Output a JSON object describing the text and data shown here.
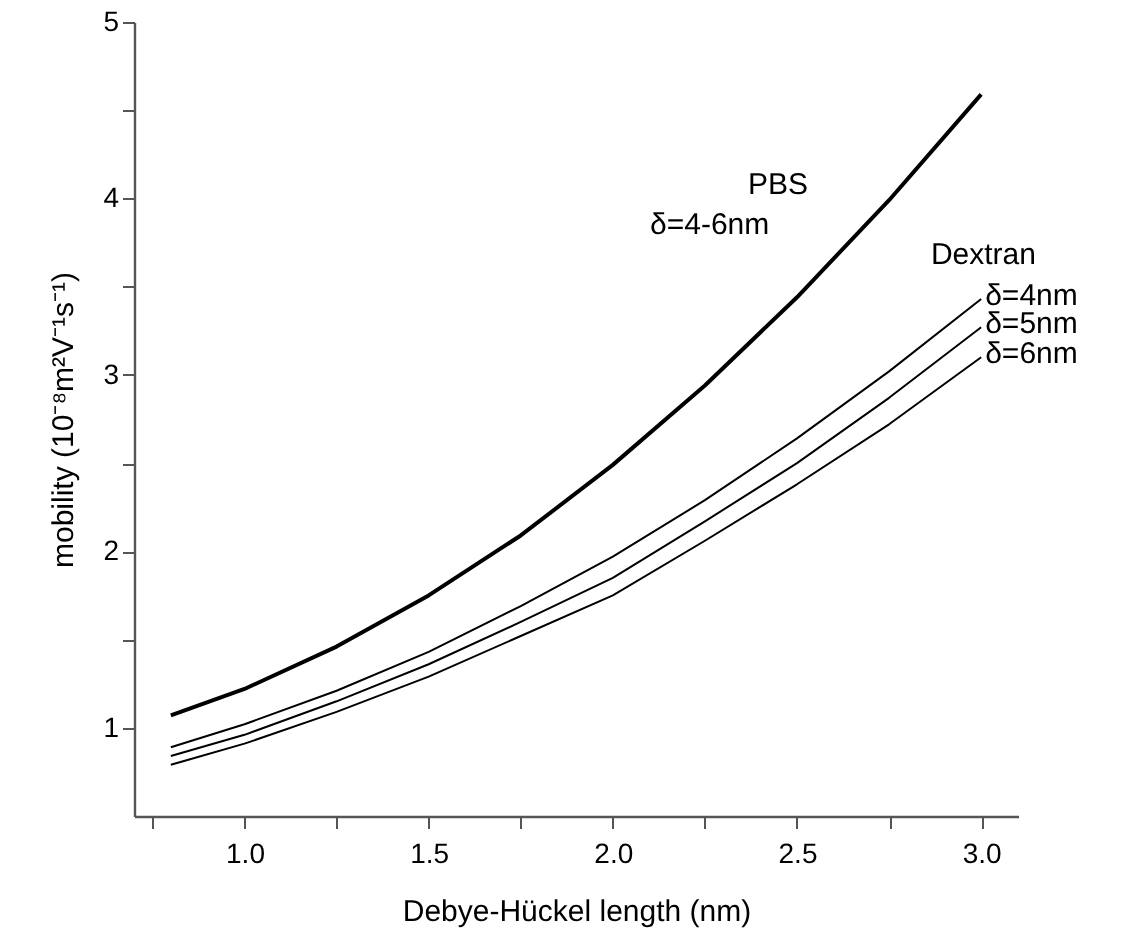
{
  "chart_data": {
    "type": "line",
    "xlabel": "Debye-Hückel length (nm)",
    "ylabel": "mobility (10⁻⁸m²V⁻¹s⁻¹)",
    "x": [
      0.8,
      1.0,
      1.25,
      1.5,
      1.75,
      2.0,
      2.25,
      2.5,
      2.75,
      3.0
    ],
    "series": [
      {
        "name": "PBS",
        "color": "#000000",
        "values": [
          1.07,
          1.22,
          1.46,
          1.75,
          2.09,
          2.49,
          2.94,
          3.44,
          3.99,
          4.59
        ]
      },
      {
        "name": "δ=4nm",
        "color": "#000000",
        "values": [
          0.89,
          1.02,
          1.21,
          1.43,
          1.69,
          1.97,
          2.29,
          2.64,
          3.02,
          3.43
        ]
      },
      {
        "name": "δ=5nm",
        "color": "#000000",
        "values": [
          0.84,
          0.96,
          1.15,
          1.36,
          1.6,
          1.85,
          2.17,
          2.5,
          2.87,
          3.27
        ]
      },
      {
        "name": "δ=6nm",
        "color": "#000000",
        "values": [
          0.79,
          0.91,
          1.09,
          1.29,
          1.52,
          1.75,
          2.06,
          2.38,
          2.72,
          3.1
        ]
      }
    ],
    "annotations": [
      "δ=4-6nm",
      "Dextran"
    ],
    "xlim": [
      0.7,
      3.1
    ],
    "xticks": [
      {
        "value": 0.75,
        "label": null
      },
      {
        "value": 1,
        "label": "1.0"
      },
      {
        "value": 1.25,
        "label": null
      },
      {
        "value": 1.5,
        "label": "1.5"
      },
      {
        "value": 1.75,
        "label": null
      },
      {
        "value": 2,
        "label": "2.0"
      },
      {
        "value": 2.25,
        "label": null
      },
      {
        "value": 2.5,
        "label": "2.5"
      },
      {
        "value": 2.75,
        "label": null
      },
      {
        "value": 3,
        "label": "3.0"
      }
    ],
    "ylim": [
      0.5,
      5
    ],
    "yticks": [
      1,
      {
        "value": 1.5,
        "label": null
      },
      2,
      {
        "value": 2.5,
        "label": null
      },
      3,
      {
        "value": 3.5,
        "label": null
      },
      4,
      {
        "value": 4.5,
        "label": null
      },
      5
    ],
    "grid": false,
    "marker": "none",
    "line_style": "solid"
  }
}
